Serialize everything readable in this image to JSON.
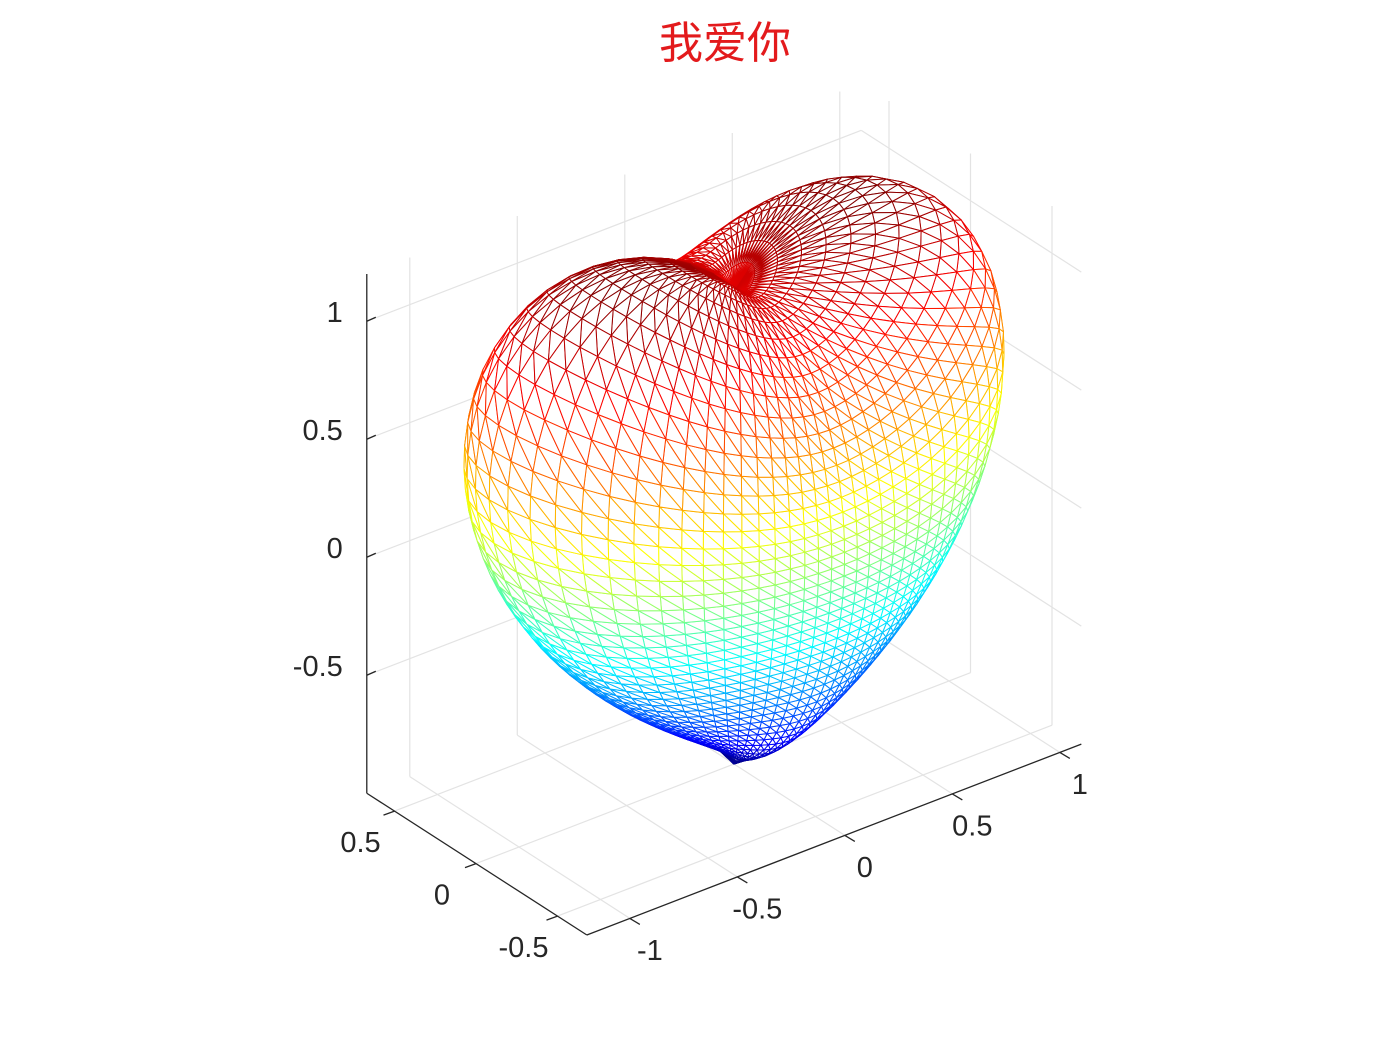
{
  "chart_data": {
    "type": "mesh3d",
    "title": "我爱你",
    "title_color": "#e31a1c",
    "colormap": "jet",
    "grid": true,
    "xlim": [
      -1.2,
      1.1
    ],
    "xticks": [
      -1,
      -0.5,
      0,
      0.5,
      1
    ],
    "ylim": [
      -0.68,
      0.67
    ],
    "yticks": [
      -0.5,
      0,
      0.5
    ],
    "zlim": [
      -1,
      1.2
    ],
    "zticks": [
      -0.5,
      0,
      0.5,
      1
    ]
  }
}
